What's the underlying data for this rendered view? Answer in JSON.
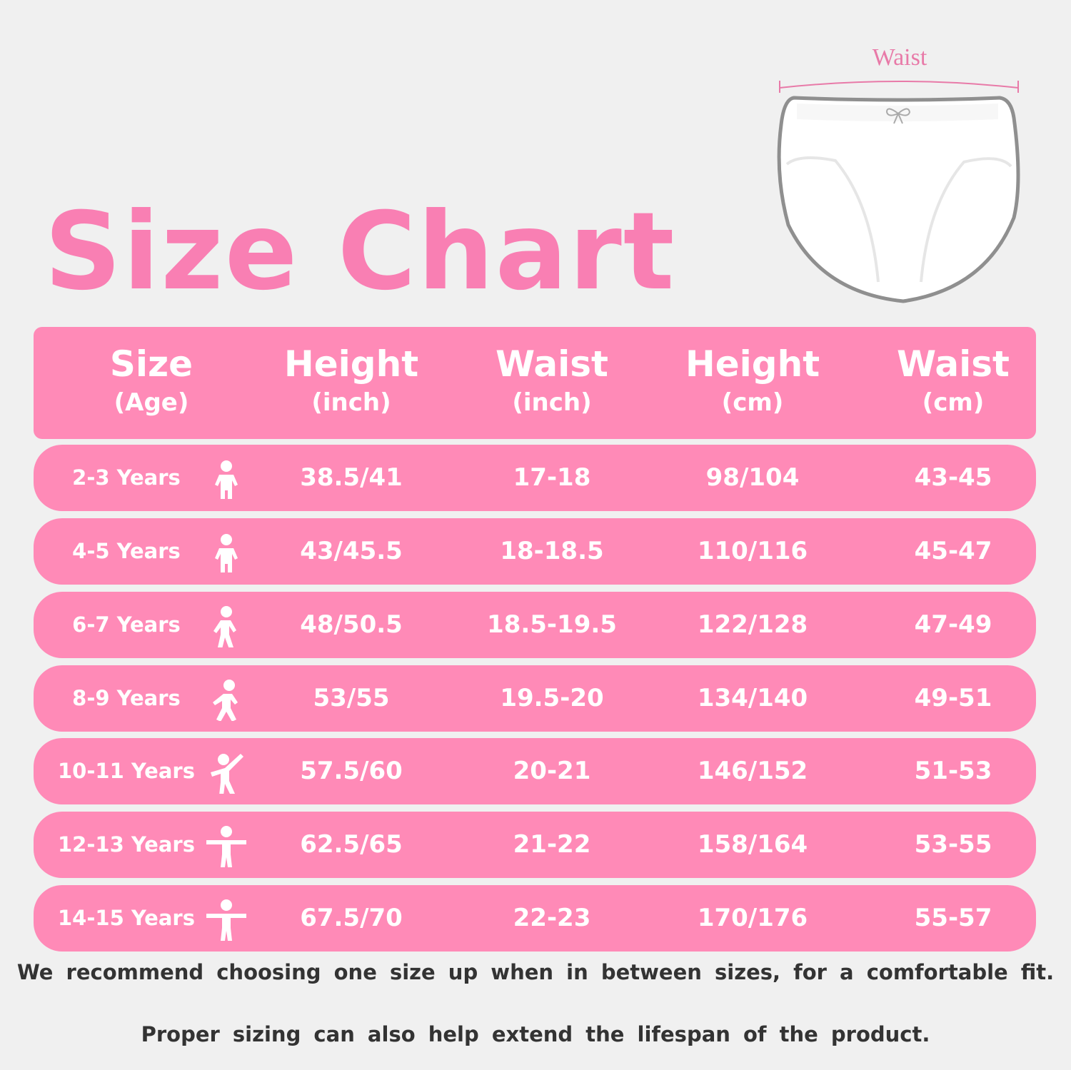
{
  "title": "Size Chart",
  "illustration": {
    "label": "Waist",
    "icon": "briefs-illustration"
  },
  "colors": {
    "accent": "#ff8ab7",
    "title": "#f97fb3",
    "background": "#f0f0f0",
    "text": "#333333"
  },
  "table": {
    "headers": [
      {
        "main": "Size",
        "sub": "(Age)"
      },
      {
        "main": "Height",
        "sub": "(inch)"
      },
      {
        "main": "Waist",
        "sub": "(inch)"
      },
      {
        "main": "Height",
        "sub": "(cm)"
      },
      {
        "main": "Waist",
        "sub": "(cm)"
      }
    ],
    "rows": [
      {
        "size": "2-3 Years",
        "icon": "toddler-icon",
        "height_in": "38.5/41",
        "waist_in": "17-18",
        "height_cm": "98/104",
        "waist_cm": "43-45"
      },
      {
        "size": "4-5 Years",
        "icon": "toddler-icon",
        "height_in": "43/45.5",
        "waist_in": "18-18.5",
        "height_cm": "110/116",
        "waist_cm": "45-47"
      },
      {
        "size": "6-7 Years",
        "icon": "child-walking-icon",
        "height_in": "48/50.5",
        "waist_in": "18.5-19.5",
        "height_cm": "122/128",
        "waist_cm": "47-49"
      },
      {
        "size": "8-9 Years",
        "icon": "child-running-icon",
        "height_in": "53/55",
        "waist_in": "19.5-20",
        "height_cm": "134/140",
        "waist_cm": "49-51"
      },
      {
        "size": "10-11 Years",
        "icon": "child-dancing-icon",
        "height_in": "57.5/60",
        "waist_in": "20-21",
        "height_cm": "146/152",
        "waist_cm": "51-53"
      },
      {
        "size": "12-13 Years",
        "icon": "child-arms-out-icon",
        "height_in": "62.5/65",
        "waist_in": "21-22",
        "height_cm": "158/164",
        "waist_cm": "53-55"
      },
      {
        "size": "14-15 Years",
        "icon": "child-arms-out-icon",
        "height_in": "67.5/70",
        "waist_in": "22-23",
        "height_cm": "170/176",
        "waist_cm": "55-57"
      }
    ]
  },
  "notes": [
    "We recommend choosing one size up when in between sizes, for a comfortable fit.",
    "Proper sizing can also help extend the lifespan of the product."
  ]
}
